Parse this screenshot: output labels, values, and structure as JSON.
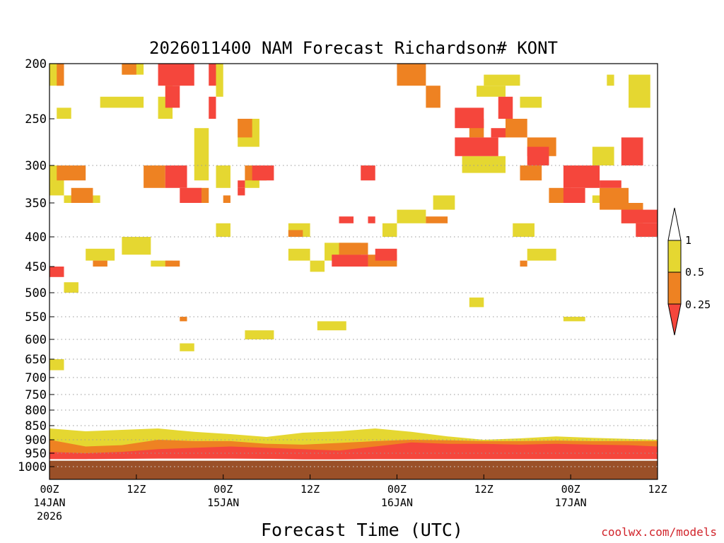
{
  "chart_data": {
    "type": "heatmap",
    "title": "2026011400 NAM Forecast Richardson# KONT",
    "xlabel": "Forecast Time (UTC)",
    "ylabel": "",
    "credit": "coolwx.com/models",
    "x_unit": "forecast hour",
    "xlim": [
      0,
      84
    ],
    "x_ticks": [
      {
        "hour": 0,
        "label": "00Z",
        "date": "14JAN",
        "year": "2026"
      },
      {
        "hour": 12,
        "label": "12Z",
        "date": "",
        "year": ""
      },
      {
        "hour": 24,
        "label": "00Z",
        "date": "15JAN",
        "year": ""
      },
      {
        "hour": 36,
        "label": "12Z",
        "date": "",
        "year": ""
      },
      {
        "hour": 48,
        "label": "00Z",
        "date": "16JAN",
        "year": ""
      },
      {
        "hour": 60,
        "label": "12Z",
        "date": "",
        "year": ""
      },
      {
        "hour": 72,
        "label": "00Z",
        "date": "17JAN",
        "year": ""
      },
      {
        "hour": 84,
        "label": "12Z",
        "date": "",
        "year": ""
      }
    ],
    "y_unit": "hPa",
    "y_ticks": [
      200,
      250,
      300,
      350,
      400,
      450,
      500,
      550,
      600,
      650,
      700,
      750,
      800,
      850,
      900,
      950,
      1000
    ],
    "ylim": [
      200,
      1040
    ],
    "dotted_gridlines_hPa": [
      300,
      400,
      500,
      550,
      600,
      650,
      700,
      750,
      800,
      850,
      900,
      950,
      1000
    ],
    "ground_below_hPa": 978,
    "colors": {
      "lt_0.25": "#f5463c",
      "0.25_0.5": "#ee8222",
      "0.5_1": "#e5d731",
      "ground": "#9a5028",
      "credit": "#d1232a"
    },
    "legend": {
      "levels": [
        "1",
        "0.5",
        "0.25"
      ],
      "placement": "right"
    },
    "series": [
      {
        "name": "0.5",
        "cells": [
          [
            0,
            2,
            300,
            340
          ],
          [
            2,
            7,
            340,
            350
          ],
          [
            0,
            2,
            200,
            220
          ],
          [
            1,
            3,
            240,
            250
          ],
          [
            7,
            13,
            230,
            240
          ],
          [
            10,
            13,
            200,
            210
          ],
          [
            15,
            17,
            230,
            250
          ],
          [
            16,
            17,
            200,
            230
          ],
          [
            20,
            22,
            260,
            320
          ],
          [
            23,
            24,
            200,
            230
          ],
          [
            23,
            25,
            300,
            330
          ],
          [
            23,
            25,
            380,
            400
          ],
          [
            26,
            29,
            250,
            280
          ],
          [
            27,
            29,
            300,
            330
          ],
          [
            33,
            36,
            380,
            400
          ],
          [
            33,
            36,
            420,
            440
          ],
          [
            36,
            38,
            440,
            460
          ],
          [
            38,
            43,
            410,
            440
          ],
          [
            46,
            48,
            380,
            400
          ],
          [
            48,
            52,
            360,
            380
          ],
          [
            53,
            56,
            340,
            360
          ],
          [
            57,
            63,
            290,
            310
          ],
          [
            59,
            63,
            220,
            230
          ],
          [
            60,
            65,
            210,
            220
          ],
          [
            65,
            68,
            230,
            240
          ],
          [
            64,
            67,
            380,
            400
          ],
          [
            75,
            78,
            280,
            300
          ],
          [
            75,
            78,
            340,
            350
          ],
          [
            80,
            83,
            210,
            240
          ],
          [
            77,
            78,
            210,
            220
          ],
          [
            10,
            14,
            400,
            430
          ],
          [
            5,
            9,
            420,
            440
          ],
          [
            14,
            17,
            440,
            450
          ],
          [
            2,
            4,
            480,
            500
          ],
          [
            37,
            41,
            560,
            580
          ],
          [
            27,
            31,
            580,
            600
          ],
          [
            0,
            2,
            650,
            680
          ],
          [
            18,
            20,
            610,
            630
          ],
          [
            71,
            74,
            550,
            560
          ],
          [
            66,
            70,
            420,
            440
          ],
          [
            58,
            60,
            510,
            530
          ]
        ]
      },
      {
        "name": "0.25",
        "cells": [
          [
            1,
            2,
            200,
            220
          ],
          [
            10,
            12,
            200,
            210
          ],
          [
            1,
            5,
            300,
            320
          ],
          [
            3,
            6,
            330,
            350
          ],
          [
            13,
            16,
            300,
            330
          ],
          [
            19,
            22,
            330,
            350
          ],
          [
            27,
            30,
            300,
            320
          ],
          [
            26,
            28,
            250,
            270
          ],
          [
            48,
            52,
            200,
            220
          ],
          [
            52,
            54,
            220,
            240
          ],
          [
            58,
            60,
            250,
            270
          ],
          [
            63,
            66,
            250,
            270
          ],
          [
            66,
            70,
            270,
            290
          ],
          [
            69,
            72,
            330,
            350
          ],
          [
            65,
            68,
            300,
            320
          ],
          [
            76,
            80,
            330,
            360
          ],
          [
            79,
            82,
            350,
            380
          ],
          [
            40,
            44,
            410,
            430
          ],
          [
            44,
            48,
            430,
            450
          ],
          [
            16,
            18,
            440,
            450
          ],
          [
            33,
            35,
            390,
            400
          ],
          [
            52,
            55,
            370,
            380
          ],
          [
            65,
            66,
            440,
            450
          ],
          [
            24,
            25,
            340,
            350
          ],
          [
            18,
            19,
            550,
            560
          ],
          [
            6,
            8,
            440,
            450
          ]
        ]
      },
      {
        "name": "<0.25",
        "cells": [
          [
            15,
            20,
            200,
            220
          ],
          [
            16,
            18,
            220,
            240
          ],
          [
            22,
            23,
            200,
            220
          ],
          [
            22,
            23,
            230,
            250
          ],
          [
            16,
            19,
            300,
            330
          ],
          [
            18,
            21,
            330,
            350
          ],
          [
            28,
            31,
            300,
            320
          ],
          [
            26,
            27,
            330,
            340
          ],
          [
            43,
            45,
            300,
            320
          ],
          [
            40,
            42,
            370,
            380
          ],
          [
            44,
            45,
            370,
            380
          ],
          [
            45,
            48,
            420,
            440
          ],
          [
            39,
            44,
            430,
            450
          ],
          [
            56,
            60,
            240,
            260
          ],
          [
            56,
            62,
            270,
            290
          ],
          [
            61,
            63,
            260,
            270
          ],
          [
            62,
            64,
            230,
            250
          ],
          [
            66,
            69,
            280,
            300
          ],
          [
            71,
            76,
            300,
            330
          ],
          [
            71,
            74,
            330,
            350
          ],
          [
            76,
            79,
            320,
            330
          ],
          [
            79,
            82,
            270,
            300
          ],
          [
            79,
            84,
            360,
            380
          ],
          [
            81,
            84,
            380,
            400
          ],
          [
            0,
            2,
            450,
            470
          ],
          [
            26,
            27,
            320,
            330
          ]
        ]
      }
    ],
    "boundary_layer_bands": [
      {
        "name": "0.5",
        "hour": [
          0,
          5,
          10,
          15,
          20,
          25,
          30,
          35,
          40,
          45,
          50,
          55,
          60,
          65,
          70,
          75,
          80,
          84
        ],
        "top_hPa": [
          860,
          870,
          865,
          860,
          872,
          880,
          890,
          875,
          870,
          860,
          872,
          888,
          900,
          895,
          888,
          893,
          897,
          900
        ],
        "bottom_hPa": [
          960,
          958,
          950,
          945,
          940,
          948,
          952,
          960,
          962,
          960,
          955,
          958,
          955,
          955,
          958,
          955,
          955,
          955
        ]
      },
      {
        "name": "0.25",
        "hour": [
          0,
          5,
          10,
          15,
          20,
          25,
          30,
          35,
          40,
          45,
          50,
          55,
          60,
          65,
          70,
          75,
          80,
          84
        ],
        "top_hPa": [
          900,
          925,
          920,
          900,
          905,
          905,
          915,
          918,
          912,
          905,
          900,
          902,
          905,
          905,
          903,
          905,
          905,
          905
        ],
        "bottom_hPa": [
          965,
          964,
          962,
          960,
          958,
          962,
          964,
          968,
          968,
          966,
          965,
          966,
          965,
          965,
          966,
          965,
          965,
          965
        ]
      },
      {
        "name": "<0.25",
        "hour": [
          0,
          5,
          10,
          15,
          20,
          25,
          30,
          35,
          40,
          45,
          50,
          55,
          60,
          65,
          70,
          75,
          80,
          84
        ],
        "top_hPa": [
          945,
          950,
          945,
          935,
          930,
          925,
          930,
          935,
          940,
          925,
          910,
          915,
          915,
          918,
          915,
          918,
          920,
          925
        ],
        "bottom_hPa": [
          972,
          972,
          971,
          970,
          970,
          970,
          971,
          973,
          973,
          972,
          972,
          972,
          972,
          972,
          972,
          972,
          972,
          972
        ]
      }
    ]
  }
}
